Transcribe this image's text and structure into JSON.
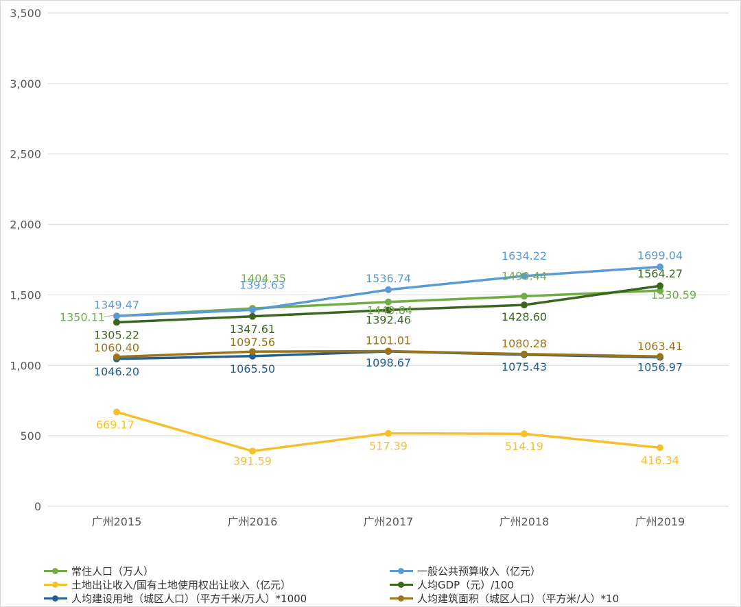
{
  "chart_data": {
    "type": "line",
    "categories": [
      "广州2015",
      "广州2016",
      "广州2017",
      "广州2018",
      "广州2019"
    ],
    "ylim": [
      0,
      3500
    ],
    "yticks": [
      "0",
      "500",
      "1,000",
      "1,500",
      "2,000",
      "2,500",
      "3,000",
      "3,500"
    ],
    "ytick_values": [
      0,
      500,
      1000,
      1500,
      2000,
      2500,
      3000,
      3500
    ],
    "grid": true,
    "legend_position": "bottom",
    "series": [
      {
        "name": "常住人口（万人）",
        "color": "#70ad47",
        "values": [
          1350.11,
          1404.35,
          1449.84,
          1490.44,
          1530.59
        ],
        "labels": [
          "1350.11",
          "1404.35",
          "1449.84",
          "1490.44",
          "1530.59"
        ]
      },
      {
        "name": "一般公共预算收入（亿元）",
        "color": "#5b9bd5",
        "values": [
          1349.47,
          1393.63,
          1536.74,
          1634.22,
          1699.04
        ],
        "labels": [
          "1349.47",
          "1393.63",
          "1536.74",
          "1634.22",
          "1699.04"
        ]
      },
      {
        "name": "土地出让收入/国有土地使用权出让收入（亿元）",
        "color": "#f6c02d",
        "values": [
          669.17,
          391.59,
          517.39,
          514.19,
          416.34
        ],
        "labels": [
          "669.17",
          "391.59",
          "517.39",
          "514.19",
          "416.34"
        ]
      },
      {
        "name": "人均GDP（元）/100",
        "color": "#3b6620",
        "values": [
          1305.22,
          1347.61,
          1392.46,
          1428.6,
          1564.27
        ],
        "labels": [
          "1305.22",
          "1347.61",
          "1392.46",
          "1428.60",
          "1564.27"
        ]
      },
      {
        "name": "人均建设用地（城区人口）（平方千米/万人）*1000",
        "color": "#255e91",
        "values": [
          1046.2,
          1065.5,
          1098.67,
          1075.43,
          1056.97
        ],
        "labels": [
          "1046.20",
          "1065.50",
          "1098.67",
          "1075.43",
          "1056.97"
        ]
      },
      {
        "name": "人均建筑面积（城区人口）（平方米/人）*10",
        "color": "#9c7418",
        "values": [
          1060.4,
          1097.56,
          1101.01,
          1080.28,
          1063.41
        ],
        "labels": [
          "1060.40",
          "1097.56",
          "1101.01",
          "1080.28",
          "1063.41"
        ]
      }
    ]
  }
}
